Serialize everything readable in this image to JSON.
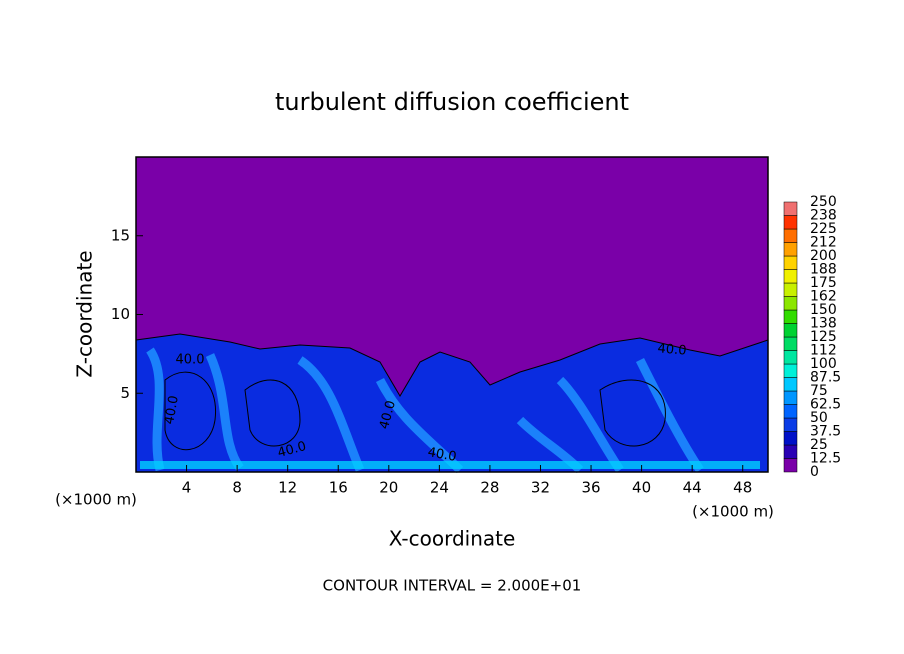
{
  "chart_data": {
    "type": "contour",
    "title": "turbulent diffusion coefficient",
    "x_label": "X-coordinate",
    "y_label": "Z-coordinate",
    "x_unit_left": "(×1000 m)",
    "x_unit_right": "(×1000 m)",
    "footer": "CONTOUR INTERVAL = 2.000E+01",
    "xlim": [
      0,
      50
    ],
    "ylim": [
      0,
      20
    ],
    "xticks": [
      4,
      8,
      12,
      16,
      20,
      24,
      28,
      32,
      36,
      40,
      44,
      48
    ],
    "yticks": [
      5,
      10,
      15
    ],
    "contour_labels": [
      "40.0",
      "40.0",
      "40.0",
      "40.0",
      "40.0",
      "40.0"
    ],
    "colorbar": {
      "levels": [
        0,
        12.5,
        25,
        37.5,
        50,
        62.5,
        75,
        87.5,
        100,
        112,
        125,
        138,
        150,
        162,
        175,
        188,
        200,
        212,
        225,
        238,
        250
      ],
      "colors": [
        "#7a00a8",
        "#2a00b4",
        "#0010c8",
        "#0a3ce6",
        "#0064ff",
        "#0096ff",
        "#00c8ff",
        "#00f0d8",
        "#00e6a0",
        "#00dc64",
        "#00d232",
        "#32dc00",
        "#8ce600",
        "#c8f000",
        "#f0f000",
        "#ffd200",
        "#ffa000",
        "#ff6e00",
        "#ff3200",
        "#f07070"
      ]
    }
  }
}
